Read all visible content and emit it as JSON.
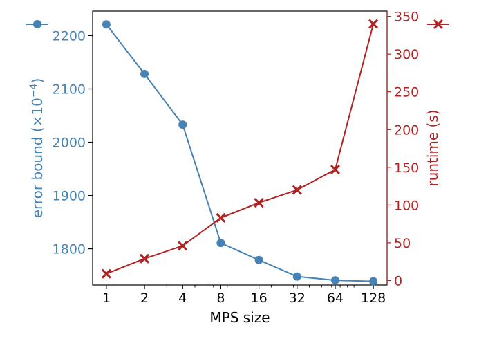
{
  "chart_data": {
    "type": "line",
    "xlabel": "MPS size",
    "x_scale": "log2",
    "x": [
      1,
      2,
      4,
      8,
      16,
      32,
      64,
      128
    ],
    "x_tick_labels": [
      "1",
      "2",
      "4",
      "8",
      "16",
      "32",
      "64",
      "128"
    ],
    "left_axis": {
      "label": "error bound (×10",
      "label_exponent": "−4",
      "label_close": ")",
      "color": "#4682b4",
      "ylim": [
        1732,
        2246
      ],
      "ticks": [
        1800,
        1900,
        2000,
        2100,
        2200
      ],
      "tick_labels": [
        "1800",
        "1900",
        "2000",
        "2100",
        "2200"
      ]
    },
    "right_axis": {
      "label": "runtime (s)",
      "color": "#b22222",
      "ylim": [
        -6,
        357
      ],
      "ticks": [
        0,
        50,
        100,
        150,
        200,
        250,
        300,
        350
      ],
      "tick_labels": [
        "0",
        "50",
        "100",
        "150",
        "200",
        "250",
        "300",
        "350"
      ]
    },
    "series": [
      {
        "axis": "left",
        "marker": "circle",
        "color": "#4682b4",
        "values": [
          2221,
          2128,
          2033,
          1811,
          1779,
          1748,
          1741,
          1739
        ]
      },
      {
        "axis": "right",
        "marker": "x",
        "color": "#b22222",
        "values": [
          9,
          29,
          46,
          83,
          103,
          120,
          147,
          340
        ]
      }
    ],
    "legend": "top, outside the plot: blue circle at left, red x at right",
    "grid": false
  }
}
